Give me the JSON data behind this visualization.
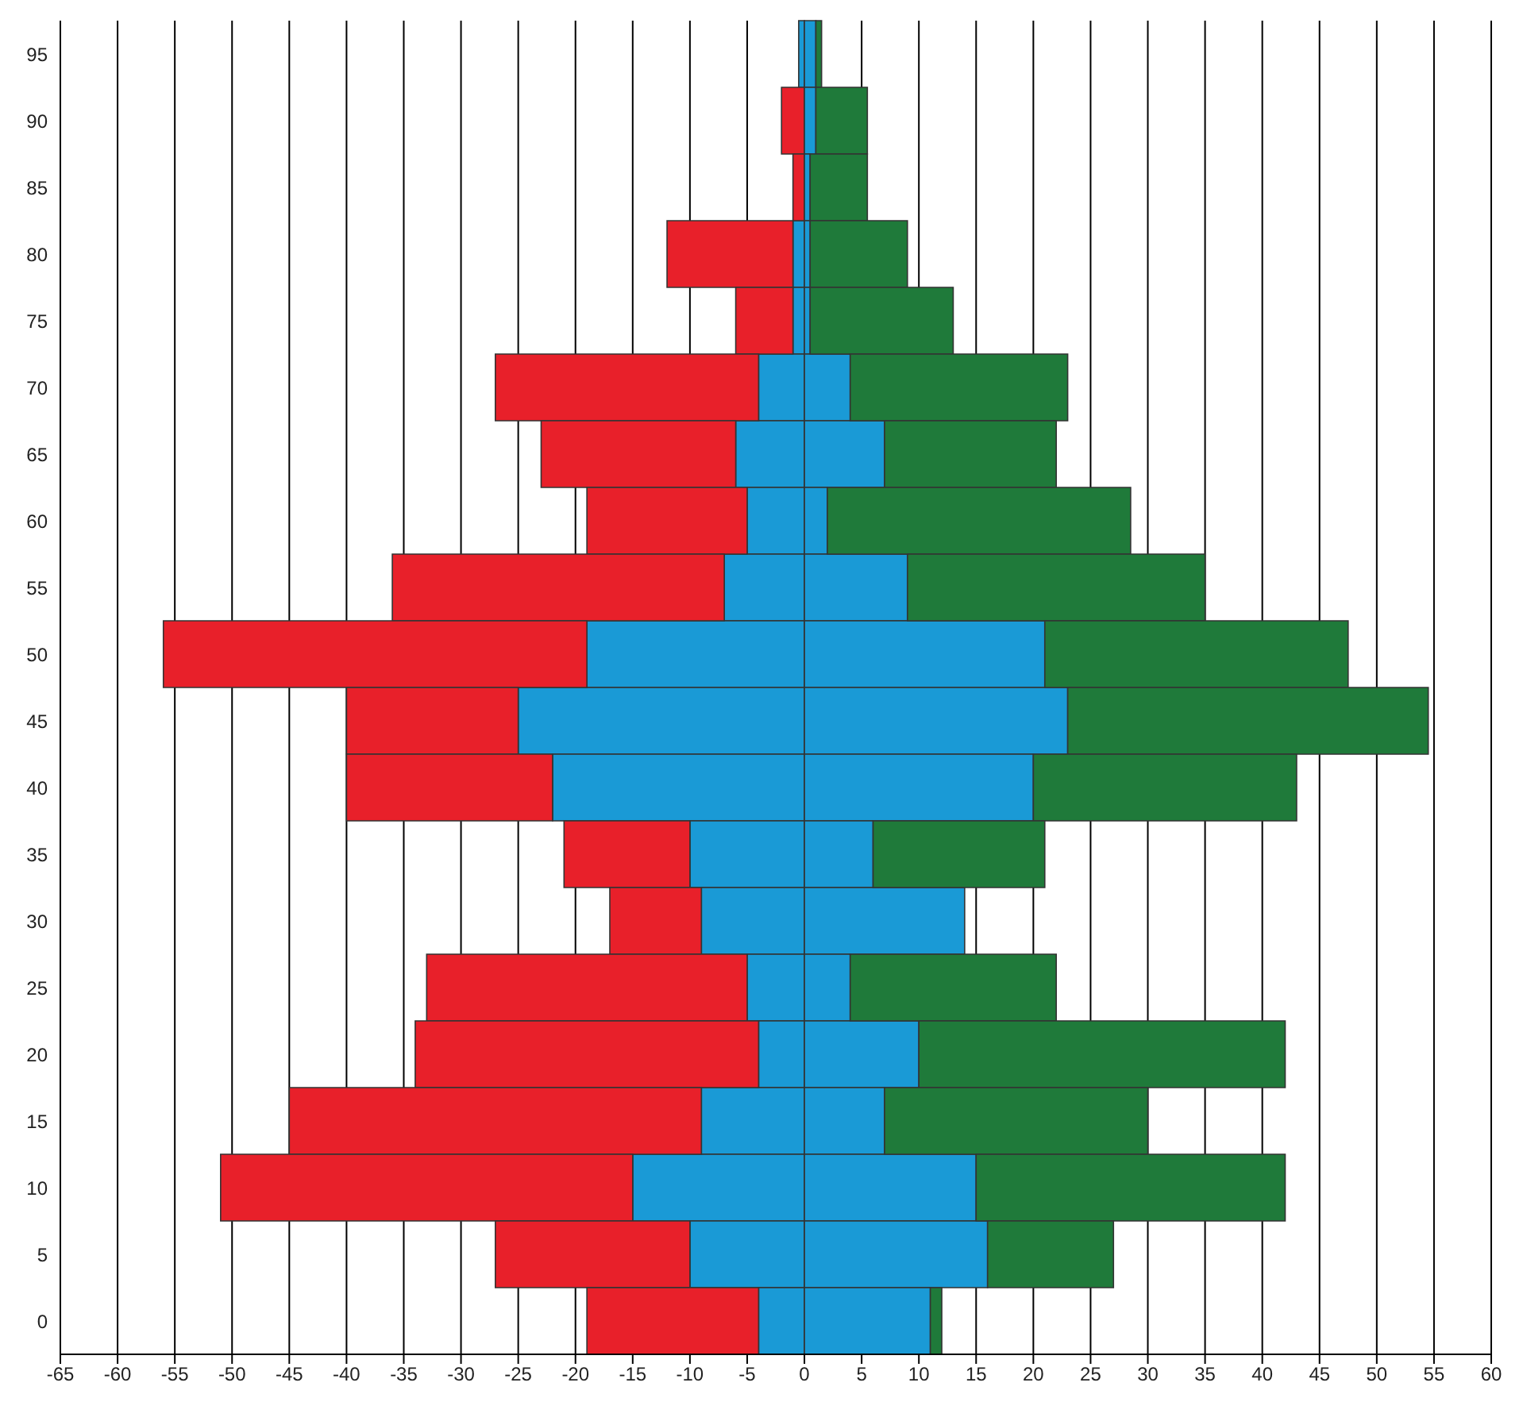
{
  "chart_data": {
    "type": "bar",
    "orientation": "horizontal",
    "stacked": true,
    "categories": [
      "95",
      "90",
      "85",
      "80",
      "75",
      "70",
      "65",
      "60",
      "55",
      "50",
      "45",
      "40",
      "35",
      "30",
      "25",
      "20",
      "15",
      "10",
      "5",
      "0"
    ],
    "series": [
      {
        "color": "#1a9ad6",
        "values": [
          -0.5,
          0,
          0,
          -1,
          -1,
          -4,
          -6,
          -5,
          -7,
          -19,
          -25,
          -22,
          -10,
          -9,
          -5,
          -4,
          -9,
          -15,
          -10,
          -4
        ]
      },
      {
        "color": "#e8202a",
        "values": [
          0,
          -2,
          -1,
          -11,
          -5,
          -23,
          -17,
          -14,
          -29,
          -37,
          -15,
          -18,
          -11,
          -8,
          -28,
          -30,
          -36,
          -36,
          -17,
          -15
        ]
      },
      {
        "color": "#1a9ad6",
        "values": [
          1,
          1,
          0.5,
          0.5,
          0.5,
          4,
          7,
          2,
          9,
          21,
          23,
          20,
          6,
          14,
          4,
          10,
          7,
          15,
          16,
          11
        ]
      },
      {
        "color": "#1f7a3a",
        "values": [
          0.5,
          4.5,
          5,
          8.5,
          12.5,
          19,
          15,
          26.5,
          26,
          26.5,
          31.5,
          23,
          15,
          0,
          18,
          32,
          23,
          27,
          11,
          1
        ]
      }
    ],
    "xlim": [
      -65,
      60
    ],
    "xticks": [
      -65,
      -60,
      -55,
      -50,
      -45,
      -40,
      -35,
      -30,
      -25,
      -20,
      -15,
      -10,
      -5,
      0,
      5,
      10,
      15,
      20,
      25,
      30,
      35,
      40,
      45,
      50,
      55,
      60
    ],
    "grid": "x"
  }
}
